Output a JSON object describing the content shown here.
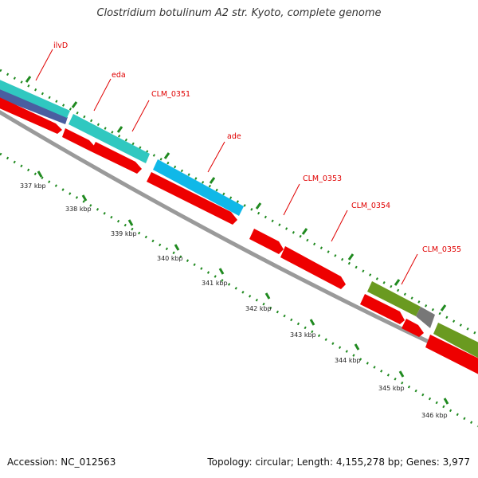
{
  "title": "Clostridium botulinum A2 str. Kyoto, complete genome",
  "accession": "Accession: NC_012563",
  "genome_info": "Topology: circular; Length: 4,155,278 bp; Genes: 3,977",
  "colors": {
    "cds_red": "#ee0000",
    "teal": "#30c8c0",
    "sky": "#10b8e8",
    "navy": "#4a5ea0",
    "olive": "#6a9a20",
    "gray": "#888888",
    "backbone": "#9a9a9a",
    "tick_green": "#208a20",
    "label_red": "#e00000"
  },
  "gene_labels": [
    {
      "text": "ilvD"
    },
    {
      "text": "eda"
    },
    {
      "text": "CLM_0351"
    },
    {
      "text": "ade"
    },
    {
      "text": "CLM_0353"
    },
    {
      "text": "CLM_0354"
    },
    {
      "text": "CLM_0355"
    }
  ],
  "ruler_labels": [
    {
      "text": "337 kbp"
    },
    {
      "text": "338 kbp"
    },
    {
      "text": "339 kbp"
    },
    {
      "text": "340 kbp"
    },
    {
      "text": "341 kbp"
    },
    {
      "text": "342 kbp"
    },
    {
      "text": "343 kbp"
    },
    {
      "text": "344 kbp"
    },
    {
      "text": "345 kbp"
    },
    {
      "text": "346 kbp"
    }
  ]
}
